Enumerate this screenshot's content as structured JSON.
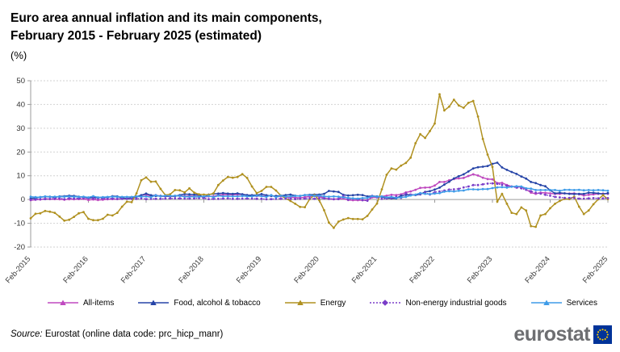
{
  "header": {
    "title_line1": "Euro area annual inflation and its main components,",
    "title_line2": "February 2015 - February 2025 (estimated)",
    "unit_label": "(%)"
  },
  "chart_data": {
    "type": "line",
    "title": "Euro area annual inflation and its main components, February 2015 - February 2025 (estimated)",
    "ylabel": "%",
    "ylim": [
      -20,
      50
    ],
    "y_ticks": [
      50,
      40,
      30,
      20,
      10,
      0,
      -10,
      -20
    ],
    "grid": "horizontal-dashed",
    "legend_position": "bottom",
    "frequency": "monthly",
    "x_start": "Feb-2015",
    "x_end": "Feb-2025",
    "x_tick_labels": [
      "Feb-2015",
      "Feb-2016",
      "Feb-2017",
      "Feb-2018",
      "Feb-2019",
      "Feb-2020",
      "Feb-2021",
      "Feb-2022",
      "Feb-2023",
      "Feb-2024",
      "Feb-2025"
    ],
    "series": [
      {
        "name": "All-items",
        "color": "#bf49bf",
        "style": "solid",
        "marker": "triangle",
        "values": [
          -0.3,
          -0.1,
          0.0,
          0.3,
          0.2,
          0.2,
          0.1,
          -0.1,
          0.1,
          0.1,
          0.2,
          0.3,
          -0.2,
          0.0,
          -0.2,
          -0.1,
          0.1,
          0.2,
          0.2,
          0.4,
          0.5,
          0.6,
          1.1,
          1.8,
          2.0,
          1.5,
          1.9,
          1.4,
          1.3,
          1.3,
          1.5,
          1.5,
          1.4,
          1.5,
          1.4,
          1.3,
          1.1,
          1.3,
          1.3,
          1.9,
          2.0,
          2.1,
          2.0,
          2.1,
          2.2,
          1.9,
          1.5,
          1.4,
          1.5,
          1.4,
          1.7,
          1.2,
          1.3,
          1.0,
          1.0,
          0.8,
          0.7,
          1.0,
          1.3,
          1.4,
          1.2,
          0.7,
          0.3,
          0.1,
          0.3,
          0.4,
          -0.2,
          -0.3,
          -0.3,
          -0.3,
          -0.3,
          0.9,
          0.9,
          1.3,
          1.6,
          2.0,
          1.9,
          2.2,
          3.0,
          3.4,
          4.1,
          4.9,
          5.0,
          5.1,
          5.9,
          7.4,
          7.4,
          8.1,
          8.6,
          8.9,
          9.1,
          9.9,
          10.6,
          10.1,
          9.2,
          8.6,
          8.5,
          6.9,
          7.0,
          6.1,
          5.5,
          5.3,
          5.2,
          4.3,
          2.9,
          2.4,
          2.9,
          2.8,
          2.6,
          2.4,
          2.4,
          2.6,
          2.5,
          2.6,
          2.2,
          1.7,
          2.0,
          2.2,
          2.4,
          2.5,
          2.4
        ]
      },
      {
        "name": "Food, alcohol & tobacco",
        "color": "#2644a7",
        "style": "solid",
        "marker": "triangle",
        "values": [
          0.5,
          0.6,
          1.0,
          1.2,
          1.2,
          0.9,
          1.3,
          1.4,
          1.6,
          1.5,
          1.2,
          1.0,
          0.6,
          0.8,
          0.8,
          0.9,
          0.9,
          1.4,
          1.3,
          0.7,
          0.4,
          0.7,
          1.2,
          1.8,
          2.5,
          1.8,
          1.5,
          1.5,
          1.4,
          1.4,
          1.4,
          1.9,
          2.3,
          2.2,
          2.1,
          1.9,
          1.0,
          2.1,
          2.4,
          2.5,
          2.7,
          2.5,
          2.4,
          2.6,
          2.2,
          1.9,
          1.8,
          1.8,
          2.3,
          1.8,
          1.5,
          1.5,
          1.6,
          1.9,
          2.1,
          1.6,
          1.5,
          1.9,
          2.0,
          2.1,
          2.1,
          2.4,
          3.6,
          3.4,
          3.2,
          2.0,
          1.7,
          1.8,
          2.0,
          1.9,
          1.3,
          1.5,
          1.3,
          1.1,
          0.6,
          0.5,
          0.5,
          1.6,
          2.0,
          2.0,
          1.9,
          2.2,
          3.2,
          3.5,
          4.2,
          5.0,
          6.3,
          7.5,
          8.9,
          9.8,
          10.6,
          11.8,
          13.1,
          13.6,
          13.8,
          14.1,
          15.0,
          15.5,
          13.5,
          12.5,
          11.6,
          10.8,
          9.7,
          8.8,
          7.4,
          6.9,
          6.1,
          5.6,
          3.9,
          2.6,
          2.8,
          2.6,
          2.4,
          2.3,
          2.4,
          2.4,
          2.9,
          2.8,
          2.6,
          2.3,
          2.7
        ]
      },
      {
        "name": "Energy",
        "color": "#b09120",
        "style": "solid",
        "marker": "triangle",
        "values": [
          -7.9,
          -6.0,
          -5.8,
          -4.8,
          -5.1,
          -5.6,
          -7.2,
          -8.9,
          -8.5,
          -7.3,
          -5.8,
          -5.3,
          -8.1,
          -8.7,
          -8.7,
          -8.1,
          -6.4,
          -6.7,
          -5.6,
          -3.0,
          -0.9,
          -1.1,
          2.6,
          8.1,
          9.3,
          7.5,
          7.6,
          4.5,
          1.9,
          2.2,
          4.0,
          3.9,
          3.0,
          4.7,
          2.9,
          2.2,
          2.1,
          2.0,
          2.6,
          6.1,
          8.0,
          9.5,
          9.2,
          9.5,
          10.7,
          9.1,
          5.5,
          2.7,
          3.6,
          5.3,
          5.3,
          3.8,
          1.7,
          0.5,
          -0.6,
          -1.8,
          -3.1,
          -3.2,
          0.2,
          1.9,
          -0.3,
          -4.5,
          -9.7,
          -11.9,
          -9.3,
          -8.4,
          -7.8,
          -8.2,
          -8.2,
          -8.3,
          -6.9,
          -4.2,
          -1.7,
          4.3,
          10.4,
          13.1,
          12.6,
          14.3,
          15.4,
          17.6,
          23.7,
          27.5,
          25.9,
          28.8,
          32.0,
          44.3,
          37.5,
          39.1,
          42.0,
          39.6,
          38.6,
          40.7,
          41.5,
          34.9,
          25.5,
          18.9,
          13.7,
          -0.9,
          2.4,
          -1.8,
          -5.6,
          -6.1,
          -3.3,
          -4.6,
          -11.2,
          -11.5,
          -6.7,
          -6.1,
          -3.7,
          -1.8,
          -0.6,
          0.3,
          0.2,
          1.2,
          -3.0,
          -6.1,
          -4.6,
          -2.0,
          0.1,
          1.8,
          0.2
        ]
      },
      {
        "name": "Non-energy industrial goods",
        "color": "#7a3dc8",
        "style": "dotted",
        "marker": "diamond",
        "values": [
          -0.1,
          0.0,
          0.1,
          0.2,
          0.3,
          0.4,
          0.6,
          0.2,
          0.6,
          0.5,
          0.5,
          0.7,
          0.6,
          0.5,
          0.5,
          0.5,
          0.4,
          0.4,
          0.3,
          0.3,
          0.3,
          0.3,
          0.3,
          0.5,
          0.2,
          0.3,
          0.3,
          0.3,
          0.4,
          0.5,
          0.5,
          0.5,
          0.4,
          0.4,
          0.5,
          0.6,
          0.6,
          0.2,
          0.3,
          0.3,
          0.4,
          0.5,
          0.3,
          0.3,
          0.4,
          0.4,
          0.4,
          0.3,
          0.3,
          0.1,
          0.2,
          0.3,
          0.3,
          0.4,
          0.3,
          0.2,
          0.3,
          0.4,
          0.5,
          0.3,
          0.5,
          0.5,
          0.3,
          0.2,
          0.2,
          1.6,
          -0.1,
          0.3,
          0.2,
          -0.3,
          -0.5,
          1.5,
          1.0,
          0.3,
          0.4,
          0.7,
          1.2,
          0.7,
          2.6,
          2.1,
          2.0,
          2.4,
          2.9,
          2.1,
          3.1,
          3.4,
          3.8,
          4.2,
          4.3,
          4.5,
          5.1,
          5.5,
          6.1,
          6.1,
          6.4,
          6.7,
          6.8,
          6.6,
          6.2,
          5.8,
          5.5,
          5.0,
          4.7,
          4.1,
          3.5,
          2.9,
          2.5,
          2.0,
          1.6,
          1.1,
          0.9,
          0.7,
          0.7,
          0.7,
          0.4,
          0.4,
          0.5,
          0.6,
          0.5,
          0.5,
          0.6
        ]
      },
      {
        "name": "Services",
        "color": "#3f9ce8",
        "style": "solid",
        "marker": "triangle",
        "values": [
          1.2,
          1.0,
          1.0,
          1.3,
          1.1,
          1.2,
          1.2,
          1.2,
          1.3,
          1.2,
          1.1,
          1.2,
          0.9,
          1.4,
          0.9,
          1.0,
          1.1,
          1.2,
          1.1,
          1.1,
          1.1,
          1.1,
          1.3,
          1.2,
          1.3,
          1.0,
          1.8,
          1.3,
          1.6,
          1.5,
          1.6,
          1.5,
          1.2,
          1.2,
          1.2,
          1.2,
          1.3,
          1.5,
          1.0,
          1.6,
          1.3,
          1.4,
          1.3,
          1.3,
          1.5,
          1.3,
          1.3,
          1.6,
          1.4,
          1.1,
          1.9,
          1.0,
          1.6,
          1.2,
          1.3,
          1.5,
          1.5,
          1.9,
          1.8,
          1.5,
          1.6,
          1.3,
          1.2,
          1.3,
          1.2,
          0.9,
          0.7,
          0.5,
          0.4,
          0.6,
          0.7,
          1.4,
          1.2,
          1.3,
          0.9,
          1.1,
          0.7,
          0.9,
          1.1,
          1.7,
          2.1,
          2.7,
          2.4,
          2.3,
          2.5,
          2.7,
          3.3,
          3.5,
          3.4,
          3.7,
          3.8,
          4.3,
          4.3,
          4.2,
          4.4,
          4.4,
          4.8,
          5.1,
          5.2,
          5.0,
          5.4,
          5.6,
          5.5,
          4.7,
          4.6,
          4.0,
          4.0,
          4.0,
          4.0,
          4.0,
          3.7,
          4.1,
          4.1,
          4.0,
          4.1,
          3.9,
          4.0,
          3.9,
          4.0,
          3.9,
          3.7
        ]
      }
    ]
  },
  "footer": {
    "source_prefix": "Source:",
    "source_text": " Eurostat (online data code: prc_hicp_manr)",
    "logo_text": "eurostat"
  }
}
